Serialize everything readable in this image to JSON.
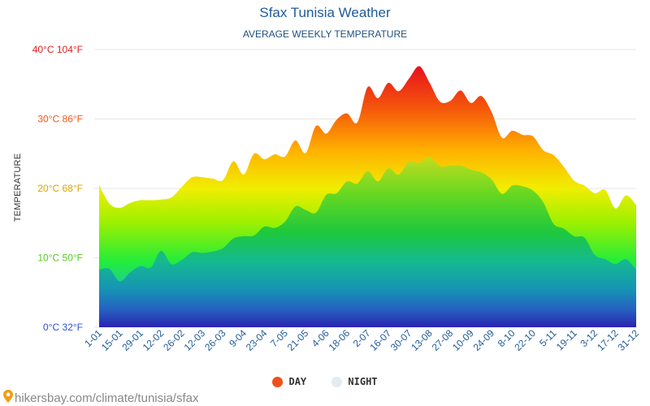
{
  "header": {
    "title": "Sfax Tunisia Weather",
    "subtitle": "AVERAGE WEEKLY TEMPERATURE"
  },
  "axis": {
    "ylabel": "TEMPERATURE"
  },
  "legend": {
    "day_label": "DAY",
    "night_label": "NIGHT",
    "day_color": "#f0501a",
    "night_color": "#e4ebf2"
  },
  "source": {
    "text": "hikersbay.com/climate/tunisia/sfax",
    "icon": "map-pin-icon"
  },
  "colors": {
    "title": "#1f5a99",
    "x_ticks": "#1f5a99",
    "grid": "#e6e6e6"
  },
  "chart_data": {
    "type": "area",
    "title": "Sfax Tunisia Weather",
    "subtitle": "AVERAGE WEEKLY TEMPERATURE",
    "ylabel": "TEMPERATURE",
    "ylim": [
      0,
      40
    ],
    "grid": true,
    "legend_position": "bottom",
    "y_ticks": [
      {
        "value": 0,
        "label": "0°C 32°F",
        "color": "#3050d8"
      },
      {
        "value": 10,
        "label": "10°C 50°F",
        "color": "#55cc22"
      },
      {
        "value": 20,
        "label": "20°C 68°F",
        "color": "#d8a800"
      },
      {
        "value": 30,
        "label": "30°C 86°F",
        "color": "#f05a1a"
      },
      {
        "value": 40,
        "label": "40°C 104°F",
        "color": "#e02020"
      }
    ],
    "x_labels": [
      "1-01",
      "15-01",
      "29-01",
      "12-02",
      "26-02",
      "12-03",
      "26-03",
      "9-04",
      "23-04",
      "7-05",
      "21-05",
      "4-06",
      "18-06",
      "2-07",
      "16-07",
      "30-07",
      "13-08",
      "27-08",
      "10-09",
      "24-09",
      "8-10",
      "22-10",
      "5-11",
      "19-11",
      "3-12",
      "17-12",
      "31-12"
    ],
    "series": [
      {
        "name": "DAY",
        "values": [
          20.5,
          17.8,
          17.2,
          17.9,
          18.3,
          18.3,
          18.4,
          18.7,
          20.2,
          21.6,
          21.6,
          21.4,
          21.2,
          23.9,
          22.0,
          25.0,
          24.2,
          24.9,
          24.6,
          26.9,
          25.1,
          29.0,
          27.9,
          29.9,
          30.8,
          29.5,
          34.6,
          33.0,
          35.2,
          34.0,
          35.8,
          37.6,
          35.2,
          32.5,
          32.6,
          34.1,
          32.3,
          33.3,
          31.0,
          27.3,
          28.3,
          27.7,
          27.5,
          25.5,
          24.8,
          23.1,
          21.1,
          20.4,
          19.3,
          19.8,
          17.1,
          19.0,
          17.6
        ]
      },
      {
        "name": "NIGHT",
        "values": [
          8.3,
          8.4,
          6.6,
          7.9,
          8.8,
          8.6,
          11.0,
          9.1,
          9.7,
          10.8,
          10.7,
          10.9,
          11.4,
          12.8,
          13.1,
          13.2,
          14.5,
          14.3,
          15.2,
          17.4,
          16.9,
          16.5,
          19.1,
          19.3,
          21.0,
          20.7,
          22.5,
          21.0,
          22.9,
          22.0,
          23.8,
          23.7,
          24.5,
          23.2,
          23.3,
          23.3,
          22.7,
          22.3,
          21.3,
          19.2,
          20.4,
          20.3,
          19.7,
          18.0,
          14.9,
          14.2,
          13.1,
          12.9,
          10.4,
          9.8,
          9.1,
          9.8,
          8.3
        ]
      }
    ]
  }
}
